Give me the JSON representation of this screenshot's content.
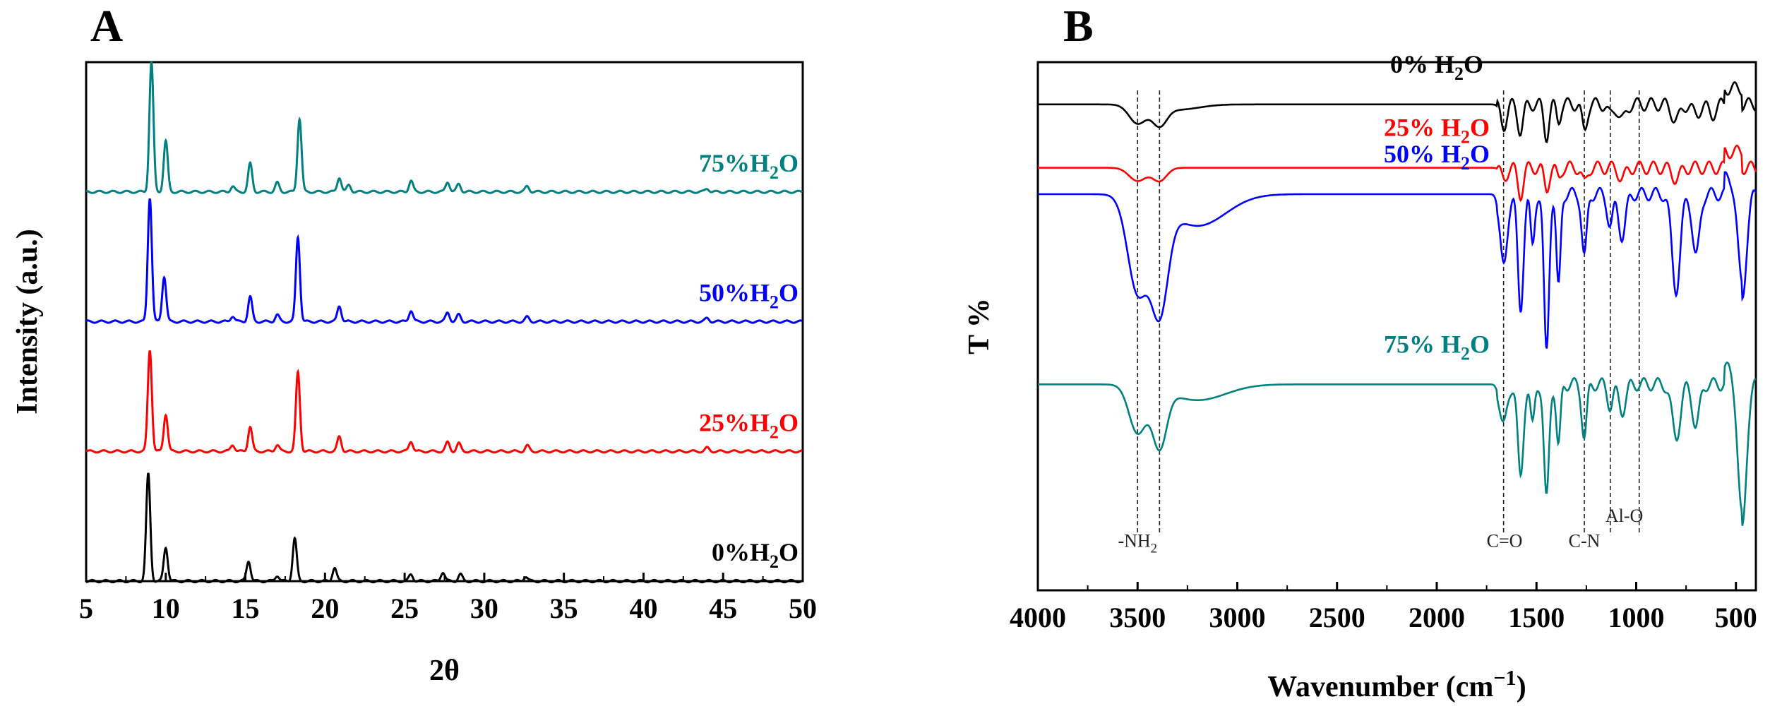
{
  "panels": {
    "a": "A",
    "b": "B"
  },
  "chart_data": [
    {
      "type": "line",
      "title": "",
      "xlabel": "2θ",
      "ylabel": "Intensity (a.u.)",
      "xlim": [
        5,
        50
      ],
      "ylim": [
        0,
        4.6
      ],
      "xticks": [
        "5",
        "10",
        "15",
        "20",
        "25",
        "30",
        "35",
        "40",
        "45",
        "50"
      ],
      "series": [
        {
          "name": "0%H2O",
          "label": "0%H",
          "sub": "2",
          "tail": "O",
          "color": "#000000",
          "offset": 0.0,
          "peaks": [
            [
              8.9,
              0.95
            ],
            [
              10.0,
              0.3
            ],
            [
              15.2,
              0.18
            ],
            [
              17.0,
              0.05
            ],
            [
              18.1,
              0.38
            ],
            [
              20.6,
              0.12
            ],
            [
              25.4,
              0.06
            ],
            [
              27.4,
              0.08
            ],
            [
              28.5,
              0.06
            ],
            [
              32.6,
              0.04
            ]
          ]
        },
        {
          "name": "25%H2O",
          "label": "25%H",
          "sub": "2",
          "tail": "O",
          "color": "#ff0000",
          "offset": 1.15,
          "peaks": [
            [
              9.0,
              0.9
            ],
            [
              10.0,
              0.33
            ],
            [
              14.2,
              0.06
            ],
            [
              15.3,
              0.22
            ],
            [
              17.0,
              0.06
            ],
            [
              18.3,
              0.7
            ],
            [
              20.9,
              0.13
            ],
            [
              25.4,
              0.09
            ],
            [
              27.7,
              0.08
            ],
            [
              28.4,
              0.07
            ],
            [
              32.7,
              0.05
            ],
            [
              44.0,
              0.03
            ]
          ]
        },
        {
          "name": "50%H2O",
          "label": "50%H",
          "sub": "2",
          "tail": "O",
          "color": "#0000ff",
          "offset": 2.3,
          "peaks": [
            [
              9.0,
              1.1
            ],
            [
              9.9,
              0.4
            ],
            [
              14.2,
              0.05
            ],
            [
              15.3,
              0.22
            ],
            [
              17.0,
              0.06
            ],
            [
              18.3,
              0.75
            ],
            [
              20.9,
              0.14
            ],
            [
              25.4,
              0.1
            ],
            [
              27.7,
              0.08
            ],
            [
              28.4,
              0.06
            ],
            [
              32.7,
              0.04
            ],
            [
              44.0,
              0.03
            ]
          ]
        },
        {
          "name": "75%H2O",
          "label": "75%H",
          "sub": "2",
          "tail": "O",
          "color": "#008080",
          "offset": 3.45,
          "peaks": [
            [
              9.1,
              1.15
            ],
            [
              10.0,
              0.45
            ],
            [
              14.2,
              0.05
            ],
            [
              15.3,
              0.25
            ],
            [
              17.0,
              0.08
            ],
            [
              18.4,
              0.65
            ],
            [
              20.9,
              0.13
            ],
            [
              21.5,
              0.06
            ],
            [
              25.4,
              0.1
            ],
            [
              27.7,
              0.09
            ],
            [
              28.4,
              0.07
            ],
            [
              32.7,
              0.05
            ],
            [
              44.0,
              0.03
            ]
          ]
        }
      ]
    },
    {
      "type": "line",
      "title": "",
      "xlabel": "Wavenumber (cm",
      "xlabel_sup": "−1",
      "xlabel_tail": ")",
      "ylabel": "T %",
      "xlim": [
        4000,
        400
      ],
      "ylim": [
        0,
        100
      ],
      "xticks": [
        "4000",
        "3500",
        "3000",
        "2500",
        "2000",
        "1500",
        "1000",
        "500"
      ],
      "annotations": [
        {
          "text": "-NH",
          "sub": "2",
          "x": 3500
        },
        {
          "text": "C=O",
          "sub": "",
          "x": 1660
        },
        {
          "text": "C-N",
          "sub": "",
          "x": 1260
        },
        {
          "text": "Al-O",
          "sub": "",
          "x": 1060
        }
      ],
      "guide_lines": [
        3500,
        3390,
        1665,
        1260,
        1130,
        985
      ],
      "series": [
        {
          "name": "0% H2O",
          "label": "0% H",
          "sub": "2",
          "tail": "O",
          "color": "#000000",
          "base": 92,
          "features": [
            [
              3500,
              3.5,
              60
            ],
            [
              3390,
              3.5,
              50
            ],
            [
              3300,
              1.0,
              150
            ],
            [
              1665,
              4,
              22
            ],
            [
              1580,
              5,
              20
            ],
            [
              1450,
              6,
              18
            ],
            [
              1390,
              3,
              15
            ],
            [
              1260,
              5,
              18
            ],
            [
              1130,
              2,
              20
            ],
            [
              1070,
              3,
              25
            ],
            [
              800,
              3,
              30
            ],
            [
              700,
              2,
              25
            ],
            [
              620,
              2,
              25
            ]
          ]
        },
        {
          "name": "25% H2O",
          "label": "25% H",
          "sub": "2",
          "tail": "O",
          "color": "#ff0000",
          "base": 80,
          "features": [
            [
              3500,
              2.5,
              60
            ],
            [
              3390,
              2.5,
              50
            ],
            [
              1665,
              2,
              22
            ],
            [
              1580,
              5,
              20
            ],
            [
              1450,
              4,
              18
            ],
            [
              1390,
              2,
              15
            ],
            [
              1260,
              3,
              18
            ],
            [
              1070,
              2,
              25
            ],
            [
              800,
              2,
              30
            ]
          ]
        },
        {
          "name": "50% H2O",
          "label": "50% H",
          "sub": "2",
          "tail": "O",
          "color": "#0000ff",
          "base": 75,
          "features": [
            [
              3500,
              18,
              70
            ],
            [
              3390,
              20,
              60
            ],
            [
              3200,
              6,
              200
            ],
            [
              1665,
              14,
              25
            ],
            [
              1580,
              22,
              20
            ],
            [
              1520,
              10,
              15
            ],
            [
              1450,
              30,
              18
            ],
            [
              1390,
              18,
              15
            ],
            [
              1260,
              12,
              18
            ],
            [
              1130,
              6,
              20
            ],
            [
              1070,
              8,
              25
            ],
            [
              800,
              18,
              30
            ],
            [
              700,
              12,
              25
            ],
            [
              470,
              20,
              30
            ]
          ]
        },
        {
          "name": "75% H2O",
          "label": "75% H",
          "sub": "2",
          "tail": "O",
          "color": "#008080",
          "base": 39,
          "features": [
            [
              3500,
              9,
              60
            ],
            [
              3390,
              11,
              50
            ],
            [
              3200,
              3,
              200
            ],
            [
              1665,
              8,
              25
            ],
            [
              1580,
              18,
              20
            ],
            [
              1520,
              8,
              15
            ],
            [
              1450,
              22,
              18
            ],
            [
              1390,
              12,
              15
            ],
            [
              1260,
              10,
              18
            ],
            [
              1130,
              4,
              20
            ],
            [
              1070,
              5,
              25
            ],
            [
              800,
              10,
              30
            ],
            [
              700,
              8,
              25
            ],
            [
              470,
              28,
              30
            ]
          ]
        }
      ]
    }
  ]
}
